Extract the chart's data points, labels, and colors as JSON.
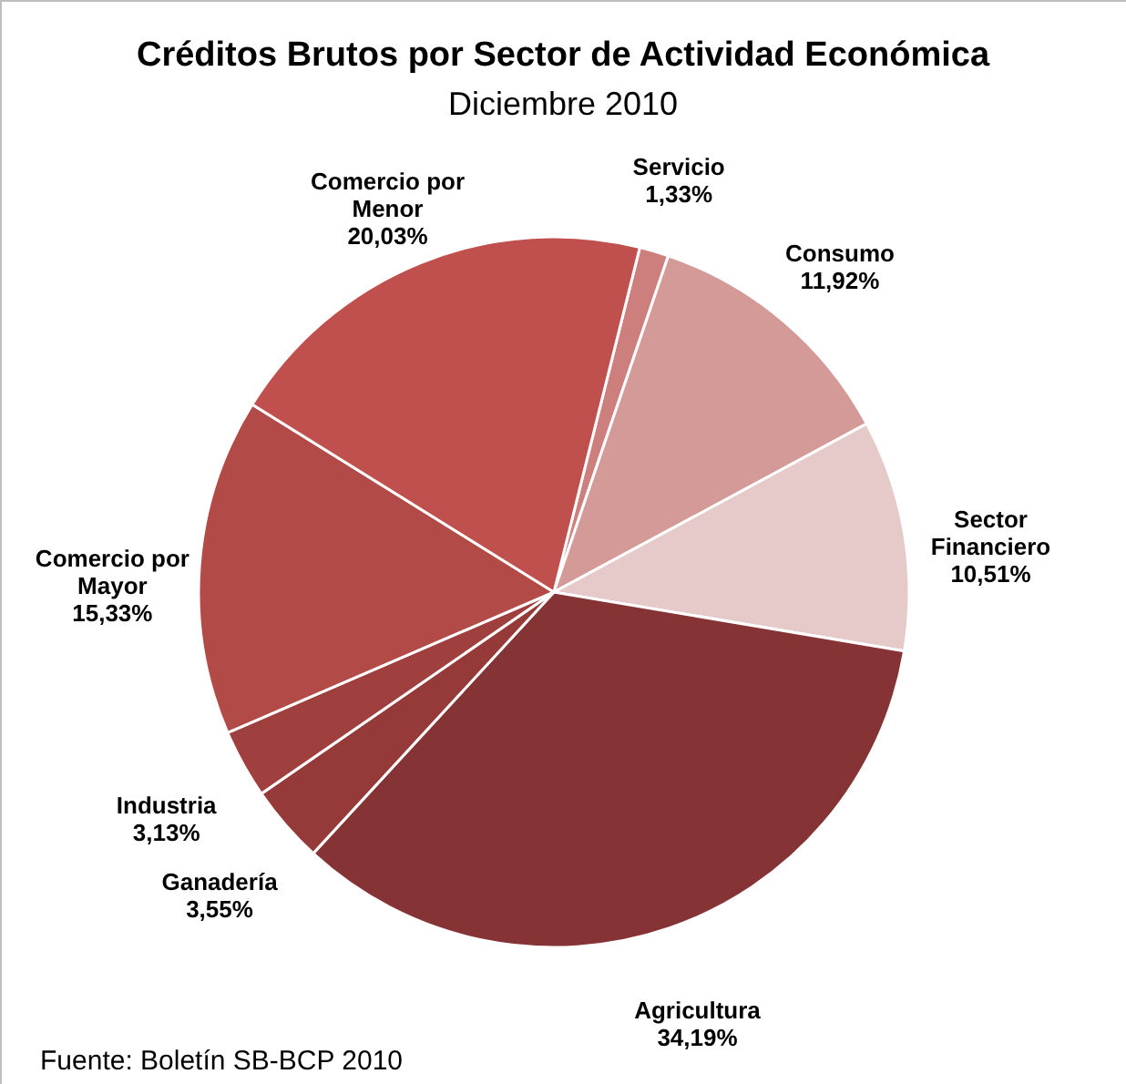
{
  "chart_data": {
    "type": "pie",
    "title": "Créditos Brutos por Sector de Actividad  Económica",
    "subtitle": "Diciembre 2010",
    "categories": [
      "Servicio",
      "Consumo",
      "Sector Financiero",
      "Agricultura",
      "Ganadería",
      "Industria",
      "Comercio por Mayor",
      "Comercio por Menor"
    ],
    "values": [
      1.33,
      11.92,
      10.51,
      34.19,
      3.55,
      3.13,
      15.33,
      20.03
    ],
    "value_labels": [
      "1,33%",
      "11,92%",
      "10,51%",
      "34,19%",
      "3,55%",
      "3,13%",
      "15,33%",
      "20,03%"
    ],
    "colors": [
      "#cd7f7d",
      "#d49a98",
      "#e6c9c9",
      "#853335",
      "#953a38",
      "#a0403e",
      "#b24b48",
      "#c0504d"
    ],
    "annotations": [
      "Fuente: Boletín SB-BCP 2010"
    ]
  }
}
